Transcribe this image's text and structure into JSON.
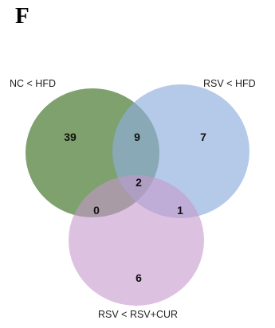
{
  "panel_label": "F",
  "sets": {
    "a": {
      "label": "NC < HFD",
      "color": "#5e8a4a"
    },
    "b": {
      "label": "RSV < HFD",
      "color": "#8eaedb"
    },
    "c": {
      "label": "RSV < RSV+CUR",
      "color": "#c697cc"
    }
  },
  "regions": {
    "a_only": "39",
    "b_only": "7",
    "c_only": "6",
    "ab": "9",
    "ac": "0",
    "bc": "1",
    "abc": "2"
  }
}
